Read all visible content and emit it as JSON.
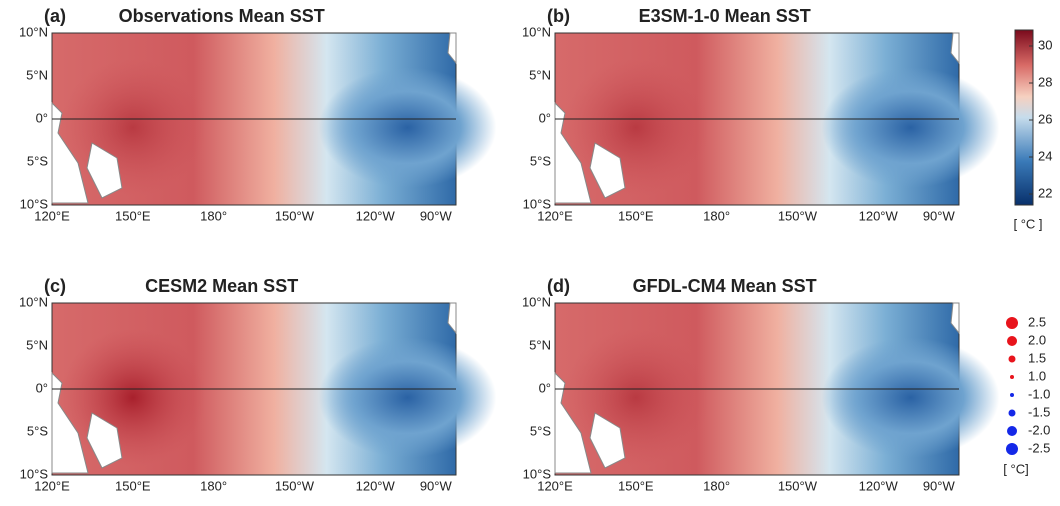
{
  "panels": [
    {
      "label": "(a)",
      "title": "Observations Mean SST"
    },
    {
      "label": "(b)",
      "title": "E3SM-1-0 Mean SST"
    },
    {
      "label": "(c)",
      "title": "CESM2 Mean SST"
    },
    {
      "label": "(d)",
      "title": "GFDL-CM4 Mean SST"
    }
  ],
  "x_ticks": [
    "120°E",
    "150°E",
    "180°",
    "150°W",
    "120°W",
    "90°W"
  ],
  "y_ticks": [
    "10°N",
    "5°N",
    "0°",
    "5°S",
    "10°S"
  ],
  "colorbar": {
    "ticks": [
      "30",
      "28",
      "26",
      "24",
      "22"
    ],
    "unit": "[ °C ]"
  },
  "legend": {
    "entries": [
      "2.5",
      "2.0",
      "1.5",
      "1.0",
      "-1.0",
      "-1.5",
      "-2.0",
      "-2.5"
    ],
    "unit": "[ °C]"
  }
}
